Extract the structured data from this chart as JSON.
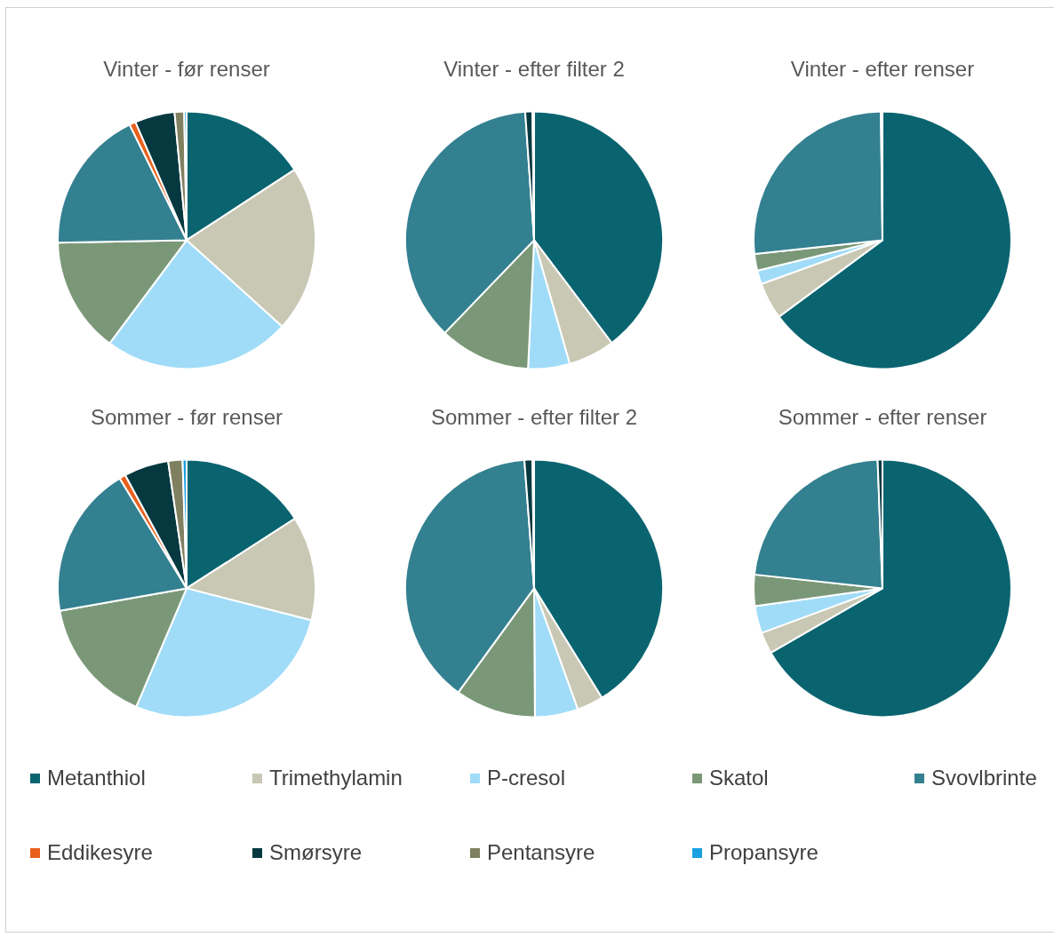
{
  "chart_data": [
    {
      "type": "pie",
      "title": "Vinter - før renser",
      "legend": "bottom",
      "categories": [
        "Metanthiol",
        "Trimethylamin",
        "P-cresol",
        "Skatol",
        "Svovlbrinte",
        "Eddikesyre",
        "Smørsyre",
        "Pentansyre",
        "Propansyre"
      ],
      "values": [
        15.8,
        20.9,
        23.5,
        14.5,
        18.0,
        0.8,
        5.0,
        1.2,
        0.3
      ],
      "colors": [
        "#0a6470",
        "#c8c8b4",
        "#a0dcf8",
        "#7a9878",
        "#338090",
        "#e8601c",
        "#063840",
        "#7f8060",
        "#1aa0e0"
      ]
    },
    {
      "type": "pie",
      "title": "Vinter - efter filter 2",
      "categories": [
        null,
        null,
        null,
        null,
        null,
        null,
        null,
        null,
        null
      ],
      "values": [
        39.6,
        5.8,
        5.2,
        11.4,
        36.6,
        0,
        0.9,
        null,
        0.2
      ],
      "colors": [
        "#0a6470",
        "#c8c8b4",
        "#a0dcf8",
        "#7a9878",
        "#338090",
        "#e8601c",
        "#063840",
        "#7f8060",
        "#1aa0e0"
      ]
    },
    {
      "type": "pie",
      "title": "Vinter - efter renser",
      "categories": [
        null,
        null,
        null,
        null,
        null,
        null,
        null,
        null,
        null
      ],
      "values": [
        64.6,
        4.6,
        1.7,
        2.1,
        26.4,
        0,
        null,
        0,
        0.2
      ],
      "colors": [
        "#0a6470",
        "#c8c8b4",
        "#a0dcf8",
        "#7a9878",
        "#338090",
        "#e8601c",
        "#063840",
        "#7f8060",
        "#1aa0e0"
      ]
    },
    {
      "type": "pie",
      "title": "Sommer - før renser",
      "categories": [
        null,
        null,
        null,
        null,
        null,
        null,
        null,
        null,
        null
      ],
      "values": [
        15.9,
        13.1,
        27.4,
        15.8,
        19.1,
        0.8,
        5.6,
        1.8,
        0.5
      ],
      "colors": [
        "#0a6470",
        "#c8c8b4",
        "#a0dcf8",
        "#7a9878",
        "#338090",
        "#e8601c",
        "#063840",
        "#7f8060",
        "#1aa0e0"
      ]
    },
    {
      "type": "pie",
      "title": "Sommer - efter filter 2",
      "categories": [
        null,
        null,
        null,
        null,
        null,
        null,
        null,
        null,
        null
      ],
      "values": [
        41.1,
        3.3,
        5.4,
        10.1,
        38.7,
        0,
        1.0,
        0.2,
        null
      ],
      "colors": [
        "#0a6470",
        "#c8c8b4",
        "#a0dcf8",
        "#7a9878",
        "#338090",
        "#e8601c",
        "#063840",
        "#7f8060",
        "#1aa0e0"
      ]
    },
    {
      "type": "pie",
      "title": "Sommer - efter renser",
      "categories": [
        null,
        null,
        null,
        null,
        null,
        null,
        null,
        null,
        null
      ],
      "values": [
        66.4,
        2.7,
        3.4,
        3.9,
        22.6,
        0,
        0.6,
        null,
        null
      ],
      "colors": [
        "#0a6470",
        "#c8c8b4",
        "#a0dcf8",
        "#7a9878",
        "#338090",
        "#e8601c",
        "#063840",
        "#7f8060",
        "#1aa0e0"
      ]
    }
  ]
}
